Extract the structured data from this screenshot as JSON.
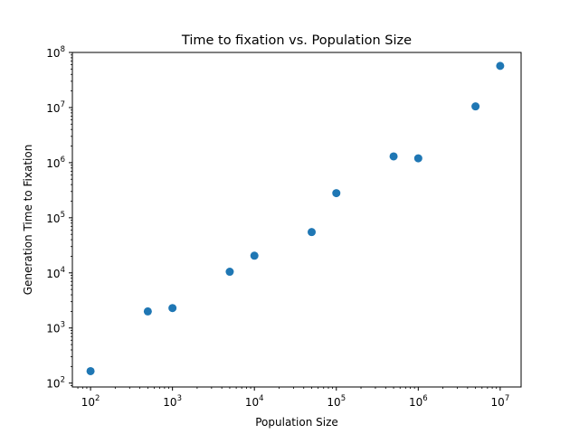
{
  "chart_data": {
    "type": "scatter",
    "title": "Time to fixation vs. Population Size",
    "xlabel": "Population Size",
    "ylabel": "Generation Time to Fixation",
    "x_scale": "log",
    "y_scale": "log",
    "xlim": [
      60,
      18000000
    ],
    "ylim": [
      85,
      100000000
    ],
    "x_ticks": [
      {
        "base": "10",
        "exp": "2",
        "value": 100
      },
      {
        "base": "10",
        "exp": "3",
        "value": 1000
      },
      {
        "base": "10",
        "exp": "4",
        "value": 10000
      },
      {
        "base": "10",
        "exp": "5",
        "value": 100000
      },
      {
        "base": "10",
        "exp": "6",
        "value": 1000000
      },
      {
        "base": "10",
        "exp": "7",
        "value": 10000000
      }
    ],
    "y_ticks": [
      {
        "base": "10",
        "exp": "2",
        "value": 100
      },
      {
        "base": "10",
        "exp": "3",
        "value": 1000
      },
      {
        "base": "10",
        "exp": "4",
        "value": 10000
      },
      {
        "base": "10",
        "exp": "5",
        "value": 100000
      },
      {
        "base": "10",
        "exp": "6",
        "value": 1000000
      },
      {
        "base": "10",
        "exp": "7",
        "value": 10000000
      },
      {
        "base": "10",
        "exp": "8",
        "value": 100000000
      }
    ],
    "grid": false,
    "marker_color": "#1f77b4",
    "series": [
      {
        "x": [
          100,
          500,
          1000,
          5000,
          10000,
          50000,
          100000,
          500000,
          1000000,
          5000000,
          10000000
        ],
        "y": [
          165,
          2000,
          2300,
          10500,
          20500,
          55000,
          280000,
          1300000,
          1200000,
          10500000,
          57000000
        ]
      }
    ]
  }
}
